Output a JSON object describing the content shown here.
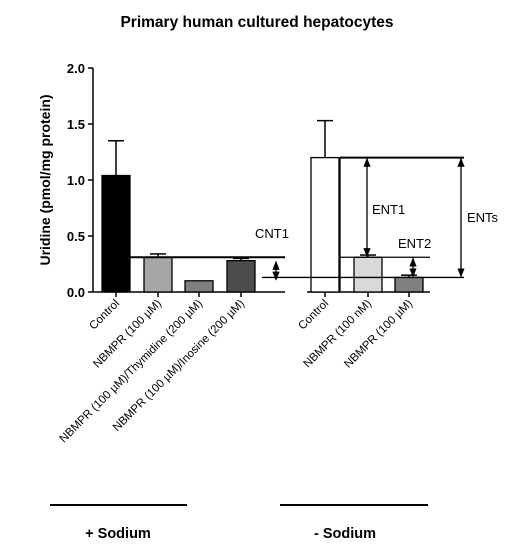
{
  "chart_data": {
    "type": "bar",
    "title": "Primary human cultured hepatocytes",
    "ylabel": "Uridine (pmol/mg protein)",
    "ylim": [
      0,
      2.0
    ],
    "yticks": [
      "0.0",
      "0.5",
      "1.0",
      "1.5",
      "2.0"
    ],
    "grid": false,
    "categories": [
      "Control",
      "NBMPR (100 µM)",
      "NBMPR (100 µM)/Thymidine (200 µM)",
      "NBMPR (100 µM)/Inosine (200 µM)",
      "Control",
      "NBMPR (100 nM)",
      "NBMPR (100 µM)"
    ],
    "values": [
      1.04,
      0.31,
      0.1,
      0.28,
      1.2,
      0.31,
      0.13
    ],
    "errors": [
      0.31,
      0.03,
      0.0,
      0.02,
      0.33,
      0.02,
      0.02
    ],
    "bar_colors": [
      "#000000",
      "#a6a6a6",
      "#7f7f7f",
      "#4d4d4d",
      "#ffffff",
      "#d9d9d9",
      "#808080"
    ],
    "groups": [
      {
        "label": "+ Sodium",
        "members": [
          0,
          1,
          2,
          3
        ]
      },
      {
        "label": "- Sodium",
        "members": [
          4,
          5,
          6
        ]
      }
    ],
    "annotations": [
      {
        "label": "CNT1",
        "from": 0.28,
        "to": 0.1
      },
      {
        "label": "ENT1",
        "from": 1.2,
        "to": 0.31
      },
      {
        "label": "ENT2",
        "from": 0.31,
        "to": 0.13
      },
      {
        "label": "ENTs",
        "from": 1.2,
        "to": 0.13
      }
    ]
  }
}
